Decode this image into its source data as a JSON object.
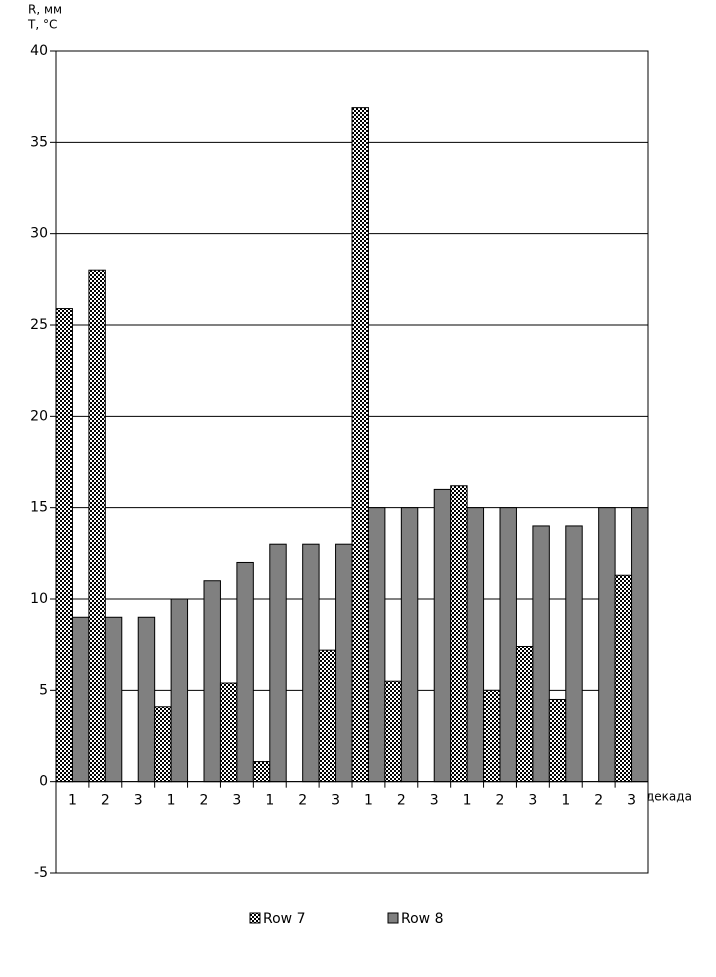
{
  "chart_data": {
    "type": "bar",
    "y_label_1": "R, мм",
    "y_label_2": "T, °C",
    "x_label": "декада",
    "categories": [
      "1",
      "2",
      "3",
      "1",
      "2",
      "3",
      "1",
      "2",
      "3",
      "1",
      "2",
      "3",
      "1",
      "2",
      "3",
      "1",
      "2",
      "3"
    ],
    "series": [
      {
        "name": "Row 7",
        "color": "#000000",
        "values": [
          25.9,
          28,
          0,
          4.1,
          0,
          5.4,
          1.1,
          0,
          7.2,
          36.9,
          5.5,
          0,
          16.2,
          5.0,
          7.4,
          4.5,
          0,
          11.3
        ]
      },
      {
        "name": "Row 8",
        "color": "#808080",
        "values": [
          9,
          9,
          9,
          10,
          11,
          12,
          13,
          13,
          13,
          15,
          15,
          16,
          15,
          15,
          14,
          14,
          15,
          15
        ]
      }
    ],
    "ylim": [
      -5,
      40
    ],
    "yticks": [
      -5,
      0,
      5,
      10,
      15,
      20,
      25,
      30,
      35,
      40
    ],
    "grid": true
  }
}
